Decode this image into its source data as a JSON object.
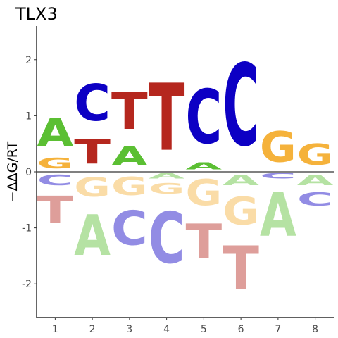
{
  "chart_data": {
    "type": "sequence-logo",
    "title": "TLX3",
    "xlabel": "",
    "ylabel": "−ΔΔG/RT",
    "xlim": [
      0.5,
      8.5
    ],
    "ylim": [
      -2.6,
      2.6
    ],
    "x_ticks": [
      1,
      2,
      3,
      4,
      5,
      6,
      7,
      8
    ],
    "y_ticks": [
      -2,
      -1,
      0,
      1,
      2
    ],
    "zero_line": true,
    "grid": false,
    "colors": {
      "A": "#5bbf33",
      "C": "#0d00c4",
      "G": "#f5b23b",
      "T": "#b5271e"
    },
    "negative_opacity": 0.45,
    "positions": [
      {
        "x": 1,
        "stack": [
          {
            "letter": "T",
            "value": -1.08
          },
          {
            "letter": "C",
            "value": -0.3
          },
          {
            "letter": "G",
            "value": 0.3
          },
          {
            "letter": "A",
            "value": 1.1
          }
        ]
      },
      {
        "x": 2,
        "stack": [
          {
            "letter": "A",
            "value": -1.72
          },
          {
            "letter": "G",
            "value": -0.55
          },
          {
            "letter": "T",
            "value": 0.7
          },
          {
            "letter": "C",
            "value": 1.75
          }
        ]
      },
      {
        "x": 3,
        "stack": [
          {
            "letter": "C",
            "value": -1.5
          },
          {
            "letter": "G",
            "value": -0.52
          },
          {
            "letter": "A",
            "value": 0.55
          },
          {
            "letter": "T",
            "value": 1.6
          }
        ]
      },
      {
        "x": 4,
        "stack": [
          {
            "letter": "C",
            "value": -1.92
          },
          {
            "letter": "G",
            "value": -0.45
          },
          {
            "letter": "A",
            "value": -0.15
          },
          {
            "letter": "T",
            "value": 1.92
          }
        ]
      },
      {
        "x": 5,
        "stack": [
          {
            "letter": "T",
            "value": -1.75
          },
          {
            "letter": "G",
            "value": -0.75
          },
          {
            "letter": "A",
            "value": 0.2
          },
          {
            "letter": "C",
            "value": 1.75
          }
        ]
      },
      {
        "x": 6,
        "stack": [
          {
            "letter": "T",
            "value": -2.35
          },
          {
            "letter": "G",
            "value": -1.1
          },
          {
            "letter": "A",
            "value": -0.3
          },
          {
            "letter": "C",
            "value": 2.35
          }
        ]
      },
      {
        "x": 7,
        "stack": [
          {
            "letter": "A",
            "value": -1.4
          },
          {
            "letter": "C",
            "value": -0.15
          },
          {
            "letter": "G",
            "value": 0.88
          }
        ]
      },
      {
        "x": 8,
        "stack": [
          {
            "letter": "C",
            "value": -0.68
          },
          {
            "letter": "A",
            "value": -0.3
          },
          {
            "letter": "G",
            "value": 0.6
          }
        ]
      }
    ]
  }
}
